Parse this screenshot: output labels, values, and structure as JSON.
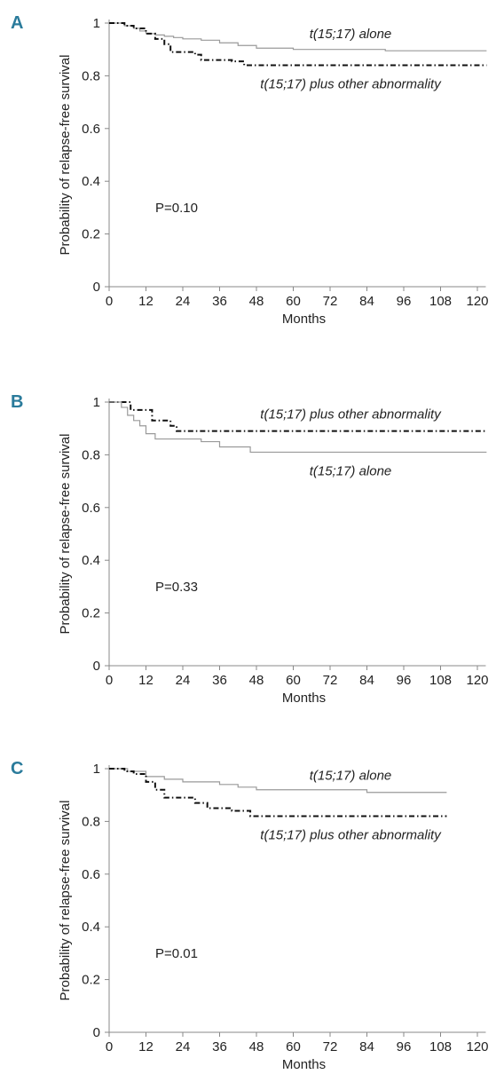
{
  "chart_data": [
    {
      "type": "line",
      "panel": "A",
      "xlabel": "Months",
      "ylabel": "Probability of relapse-free survival",
      "p_value": "P=0.10",
      "interpolation": "step",
      "xlim": [
        0,
        121
      ],
      "ylim": [
        0,
        1
      ],
      "xticks": [
        0,
        12,
        24,
        36,
        48,
        60,
        72,
        84,
        96,
        108,
        120
      ],
      "yticks": [
        0,
        0.2,
        0.4,
        0.6,
        0.8,
        1
      ],
      "series": [
        {
          "name": "t(15;17) alone",
          "color": "#9a9a9a",
          "dash": "solid",
          "x": [
            0,
            5,
            8,
            10,
            12,
            15,
            18,
            21,
            24,
            30,
            36,
            42,
            48,
            60,
            90,
            123
          ],
          "values": [
            1,
            0.99,
            0.98,
            0.97,
            0.96,
            0.955,
            0.95,
            0.945,
            0.94,
            0.935,
            0.925,
            0.915,
            0.905,
            0.9,
            0.895,
            0.895
          ]
        },
        {
          "name": "t(15;17) plus other abnormality",
          "color": "#111111",
          "dash": "dash-dot",
          "x": [
            0,
            5,
            8,
            12,
            15,
            18,
            20,
            28,
            30,
            40,
            44,
            123
          ],
          "values": [
            1,
            0.99,
            0.98,
            0.96,
            0.94,
            0.92,
            0.89,
            0.88,
            0.86,
            0.855,
            0.84,
            0.84
          ]
        }
      ]
    },
    {
      "type": "line",
      "panel": "B",
      "xlabel": "Months",
      "ylabel": "Probability of relapse-free survival",
      "p_value": "P=0.33",
      "interpolation": "step",
      "xlim": [
        0,
        121
      ],
      "ylim": [
        0,
        1
      ],
      "xticks": [
        0,
        12,
        24,
        36,
        48,
        60,
        72,
        84,
        96,
        108,
        120
      ],
      "yticks": [
        0,
        0.2,
        0.4,
        0.6,
        0.8,
        1
      ],
      "series": [
        {
          "name": "t(15;17) plus other abnormality",
          "color": "#111111",
          "dash": "dash-dot",
          "x": [
            0,
            7,
            14,
            20,
            22,
            123
          ],
          "values": [
            1,
            0.97,
            0.93,
            0.91,
            0.89,
            0.89
          ]
        },
        {
          "name": "t(15;17) alone",
          "color": "#9a9a9a",
          "dash": "solid",
          "x": [
            0,
            4,
            6,
            8,
            10,
            12,
            15,
            30,
            36,
            46,
            123
          ],
          "values": [
            1,
            0.98,
            0.95,
            0.93,
            0.91,
            0.88,
            0.86,
            0.85,
            0.83,
            0.81,
            0.81
          ]
        }
      ]
    },
    {
      "type": "line",
      "panel": "C",
      "xlabel": "Months",
      "ylabel": "Probability of relapse-free survival",
      "p_value": "P=0.01",
      "interpolation": "step",
      "xlim": [
        0,
        121
      ],
      "ylim": [
        0,
        1
      ],
      "xticks": [
        0,
        12,
        24,
        36,
        48,
        60,
        72,
        84,
        96,
        108,
        120
      ],
      "yticks": [
        0,
        0.2,
        0.4,
        0.6,
        0.8,
        1
      ],
      "series": [
        {
          "name": "t(15;17) alone",
          "color": "#9a9a9a",
          "dash": "solid",
          "x": [
            0,
            6,
            12,
            18,
            24,
            36,
            42,
            48,
            84,
            110
          ],
          "values": [
            1,
            0.99,
            0.97,
            0.96,
            0.95,
            0.94,
            0.93,
            0.92,
            0.91,
            0.91
          ]
        },
        {
          "name": "t(15;17) plus other abnormality",
          "color": "#111111",
          "dash": "dash-dot",
          "x": [
            0,
            5,
            8,
            12,
            15,
            18,
            28,
            32,
            40,
            46,
            110
          ],
          "values": [
            1,
            0.99,
            0.98,
            0.95,
            0.92,
            0.89,
            0.87,
            0.85,
            0.84,
            0.82,
            0.82
          ]
        }
      ]
    }
  ]
}
